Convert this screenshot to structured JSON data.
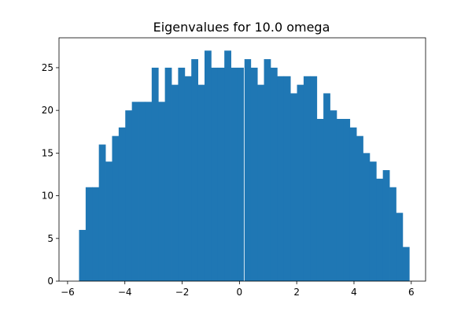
{
  "chart_data": {
    "type": "bar",
    "title": "Eigenvalues for 10.0 omega",
    "xlabel": "",
    "ylabel": "",
    "bin_start": -5.6,
    "bin_width": 0.2306,
    "counts": [
      6,
      11,
      11,
      16,
      14,
      17,
      18,
      20,
      21,
      21,
      21,
      25,
      21,
      25,
      23,
      25,
      24,
      26,
      23,
      27,
      25,
      25,
      27,
      25,
      25,
      26,
      25,
      23,
      26,
      25,
      24,
      24,
      22,
      23,
      24,
      24,
      19,
      22,
      20,
      19,
      19,
      18,
      17,
      15,
      14,
      12,
      13,
      11,
      8,
      4
    ],
    "xlim": [
      -6.3,
      6.5
    ],
    "ylim": [
      0,
      28.5
    ],
    "x_ticks": [
      -6,
      -4,
      -2,
      0,
      2,
      4,
      6
    ],
    "x_tick_labels": [
      "−6",
      "−4",
      "−2",
      "0",
      "2",
      "4",
      "6"
    ],
    "y_ticks": [
      0,
      5,
      10,
      15,
      20,
      25
    ],
    "y_tick_labels": [
      "0",
      "5",
      "10",
      "15",
      "20",
      "25"
    ],
    "bar_color": "#1f77b4",
    "grid": false,
    "legend": "none"
  }
}
